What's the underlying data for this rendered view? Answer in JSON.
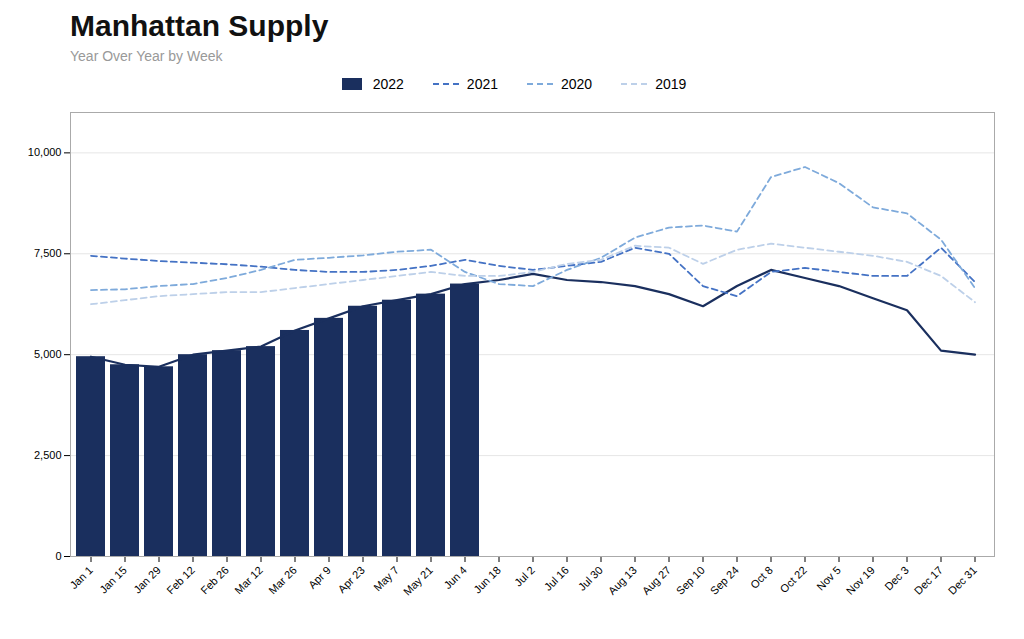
{
  "chart_data": {
    "type": "bar",
    "title": "Manhattan Supply",
    "subtitle": "Year Over Year by Week",
    "categories": [
      "Jan 1",
      "Jan 15",
      "Jan 29",
      "Feb 12",
      "Feb 26",
      "Mar 12",
      "Mar 26",
      "Apr 9",
      "Apr 23",
      "May 7",
      "May 21",
      "Jun 4",
      "Jun 18",
      "Jul 2",
      "Jul 16",
      "Jul 30",
      "Aug 13",
      "Aug 27",
      "Sep 10",
      "Sep 24",
      "Oct 8",
      "Oct 22",
      "Nov 5",
      "Nov 19",
      "Dec 3",
      "Dec 17",
      "Dec 31"
    ],
    "series": [
      {
        "name": "2022",
        "type": "bar",
        "color": "#1a2f5e",
        "values": [
          4950,
          4750,
          4700,
          5000,
          5100,
          5200,
          5600,
          5900,
          6200,
          6350,
          6500,
          6750,
          null,
          null,
          null,
          null,
          null,
          null,
          null,
          null,
          null,
          null,
          null,
          null,
          null,
          null,
          null
        ]
      },
      {
        "name": "2022",
        "type": "line",
        "line_style": "solid",
        "color": "#1a2f5e",
        "values": [
          4950,
          4750,
          4700,
          5000,
          5100,
          5200,
          5600,
          5900,
          6200,
          6350,
          6500,
          6750,
          6850,
          7000,
          6850,
          6800,
          6700,
          6500,
          6200,
          6700,
          7100,
          6900,
          6700,
          6400,
          6100,
          5100,
          5000
        ]
      },
      {
        "name": "2021",
        "type": "line",
        "line_style": "dashed",
        "color": "#4472c4",
        "values": [
          7450,
          7380,
          7320,
          7280,
          7240,
          7180,
          7100,
          7050,
          7050,
          7100,
          7200,
          7350,
          7200,
          7100,
          7200,
          7300,
          7650,
          7500,
          6700,
          6450,
          7050,
          7150,
          7050,
          6950,
          6950,
          7650,
          6800
        ]
      },
      {
        "name": "2020",
        "type": "line",
        "line_style": "dashed",
        "color": "#7eaadb",
        "values": [
          6600,
          6620,
          6700,
          6750,
          6900,
          7100,
          7350,
          7400,
          7460,
          7550,
          7600,
          7050,
          6750,
          6700,
          7100,
          7400,
          7900,
          8150,
          8200,
          8050,
          9400,
          9650,
          9250,
          8650,
          8500,
          7850,
          6650
        ]
      },
      {
        "name": "2019",
        "type": "line",
        "line_style": "dashed",
        "color": "#bdd0e9",
        "values": [
          6250,
          6350,
          6450,
          6500,
          6550,
          6550,
          6650,
          6750,
          6850,
          6950,
          7050,
          6950,
          6950,
          7050,
          7250,
          7350,
          7700,
          7650,
          7250,
          7600,
          7750,
          7650,
          7550,
          7450,
          7300,
          6950,
          6300
        ]
      }
    ],
    "ylim": [
      0,
      11000
    ],
    "yticks": [
      0,
      {
        "value": 2500,
        "label": "2,500"
      },
      {
        "value": 5000,
        "label": "5,000"
      },
      {
        "value": 7500,
        "label": "7,500"
      },
      {
        "value": 10000,
        "label": "10,000"
      }
    ],
    "grid": true,
    "legend": "top"
  }
}
